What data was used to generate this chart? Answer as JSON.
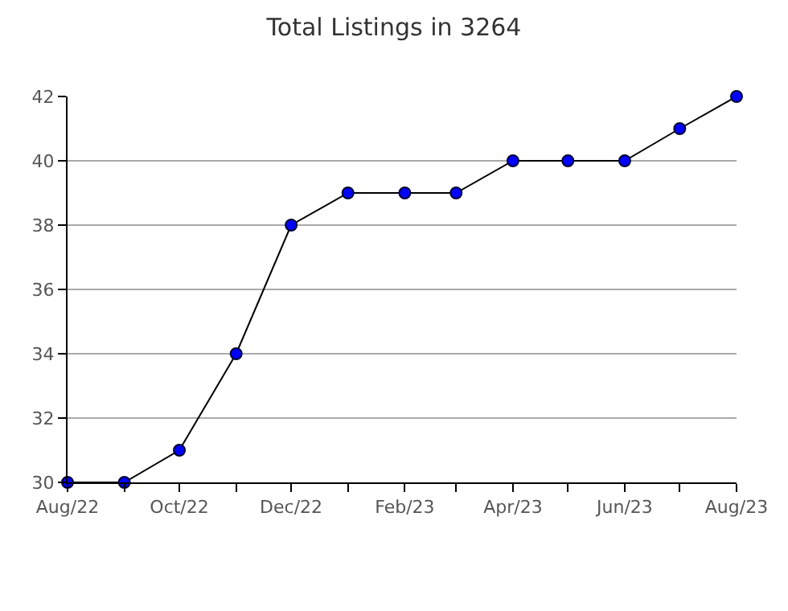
{
  "chart_data": {
    "type": "line",
    "title": "Total Listings in 3264",
    "x": [
      "2022-08",
      "2022-09",
      "2022-10",
      "2022-11",
      "2022-12",
      "2023-01",
      "2023-02",
      "2023-03",
      "2023-04",
      "2023-05",
      "2023-06",
      "2023-07",
      "2023-08"
    ],
    "series": [
      {
        "color": "#0000ff",
        "values": [
          30,
          30,
          31,
          34,
          38,
          39,
          39,
          39,
          40,
          40,
          40,
          41,
          42
        ]
      }
    ],
    "xlim": [
      "2022-08",
      "2023-08"
    ],
    "xticks": [
      {
        "value": "2022-08",
        "label": "Aug/22"
      },
      {
        "value": "2022-09",
        "label": null
      },
      {
        "value": "2022-10",
        "label": "Oct/22"
      },
      {
        "value": "2022-11",
        "label": null
      },
      {
        "value": "2022-12",
        "label": "Dec/22"
      },
      {
        "value": "2023-01",
        "label": null
      },
      {
        "value": "2023-02",
        "label": "Feb/23"
      },
      {
        "value": "2023-03",
        "label": null
      },
      {
        "value": "2023-04",
        "label": "Apr/23"
      },
      {
        "value": "2023-05",
        "label": null
      },
      {
        "value": "2023-06",
        "label": "Jun/23"
      },
      {
        "value": "2023-07",
        "label": null
      },
      {
        "value": "2023-08",
        "label": "Aug/23"
      }
    ],
    "ylim": [
      30,
      42
    ],
    "yticks": [
      30,
      32,
      34,
      36,
      38,
      40,
      42
    ],
    "grid": "y",
    "marker": "circle",
    "line_style": "solid"
  }
}
